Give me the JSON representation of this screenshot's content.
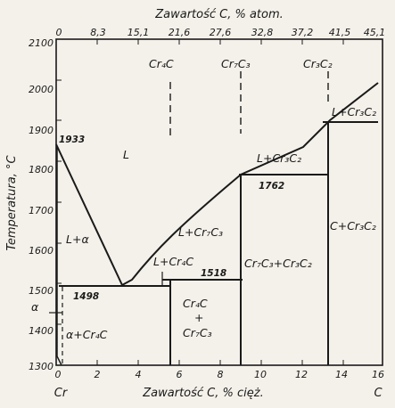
{
  "top_axis": {
    "title": "Zawartość C, % atom.",
    "ticks": [
      "0",
      "8,3",
      "15,1",
      "21,6",
      "27,6",
      "32,8",
      "37,2",
      "41,5",
      "45,1"
    ]
  },
  "bottom_axis": {
    "title": "Zawartość C, % cięż.",
    "ticks": [
      "0",
      "2",
      "4",
      "6",
      "8",
      "10",
      "12",
      "14",
      "16"
    ],
    "left_label": "Cr",
    "right_label": "C"
  },
  "left_axis": {
    "title": "Temperatura, °C",
    "ticks": [
      "2100",
      "2000",
      "1900",
      "1800",
      "1700",
      "1600",
      "1500",
      "1400",
      "1300"
    ]
  },
  "phases": {
    "cr4c": "Cr₄C",
    "cr7c3": "Cr₇C₃",
    "cr3c2": "Cr₃C₂",
    "liquid": "L",
    "l_alpha": "L+α",
    "l_cr7c3": "L+Cr₇C₃",
    "l_cr3c2_mid": "L+Cr₃C₂",
    "l_cr3c2_right": "L+Cr₃C₂",
    "l_cr4c": "L+Cr₄C",
    "cr7c3_cr3c2": "Cr₇C₃+Cr₃C₂",
    "c_cr3c2": "C+Cr₃C₂",
    "alpha": "α",
    "alpha_cr4c": "α+Cr₄C",
    "cr4c_cr7c3_top": "Cr₄C",
    "cr4c_cr7c3_plus": "+",
    "cr4c_cr7c3_bottom": "Cr₇C₃"
  },
  "temperatures": {
    "t1933": "1933",
    "t1762": "1762",
    "t1518": "1518",
    "t1498": "1498"
  }
}
